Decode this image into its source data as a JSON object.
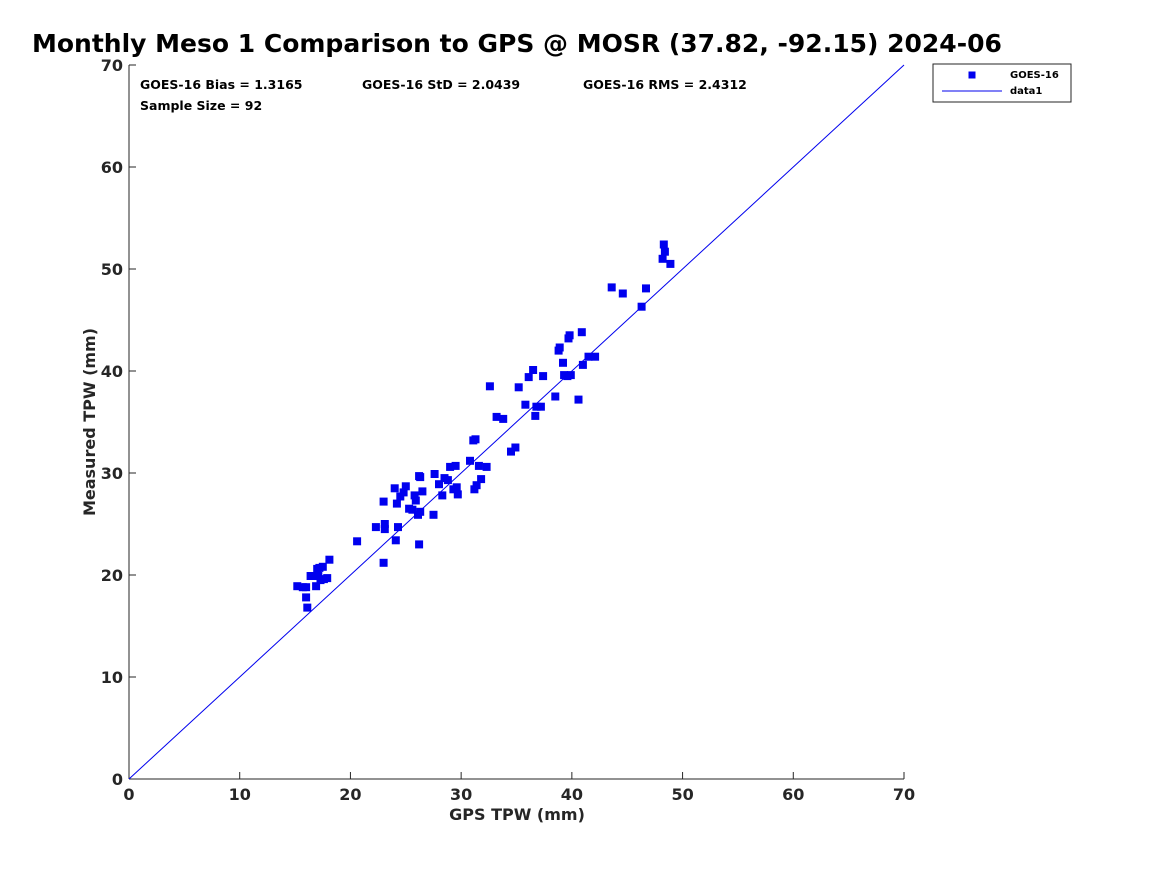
{
  "chart_data": {
    "type": "scatter",
    "title": "Monthly Meso 1 Comparison to GPS @ MOSR (37.82, -92.15) 2024-06",
    "xlabel": "GPS TPW (mm)",
    "ylabel": "Measured TPW (mm)",
    "xlim": [
      0,
      70
    ],
    "ylim": [
      0,
      70
    ],
    "xticks": [
      0,
      10,
      20,
      30,
      40,
      50,
      60,
      70
    ],
    "yticks": [
      0,
      10,
      20,
      30,
      40,
      50,
      60,
      70
    ],
    "grid": false,
    "legend_position": "top-right",
    "stats": {
      "bias": "GOES-16 Bias = 1.3165",
      "std": "GOES-16 StD = 2.0439",
      "rms": "GOES-16 RMS = 2.4312",
      "sample_size": "Sample Size = 92"
    },
    "series": [
      {
        "name": "GOES-16",
        "marker": "square",
        "color": "#0000ee",
        "x": [
          15.2,
          15.7,
          16.0,
          16.1,
          16.0,
          16.4,
          16.9,
          17.0,
          17.1,
          17.2,
          17.3,
          17.5,
          17.9,
          18.1,
          17.6,
          20.6,
          22.3,
          23.0,
          23.1,
          23.1,
          23.0,
          24.1,
          24.0,
          24.2,
          24.3,
          24.5,
          24.8,
          25.0,
          25.3,
          25.6,
          25.8,
          25.9,
          26.1,
          26.2,
          26.3,
          26.3,
          26.5,
          26.2,
          27.5,
          27.6,
          28.0,
          28.3,
          28.5,
          28.8,
          29.0,
          29.3,
          29.5,
          29.6,
          29.7,
          30.8,
          31.1,
          31.2,
          31.3,
          31.4,
          31.6,
          31.8,
          32.3,
          32.6,
          33.2,
          33.8,
          34.5,
          34.9,
          35.2,
          35.8,
          36.1,
          36.5,
          36.7,
          36.8,
          37.2,
          37.4,
          38.5,
          38.8,
          38.9,
          39.2,
          39.3,
          39.6,
          39.7,
          39.8,
          39.9,
          40.6,
          40.9,
          41.0,
          41.5,
          42.1,
          43.6,
          44.6,
          46.3,
          46.7,
          48.2,
          48.3,
          48.4,
          48.9
        ],
        "y": [
          18.9,
          18.8,
          17.8,
          16.8,
          18.8,
          19.9,
          18.9,
          20.6,
          19.9,
          20.7,
          19.5,
          20.8,
          19.7,
          21.5,
          19.6,
          23.3,
          24.7,
          21.2,
          25.0,
          24.5,
          27.2,
          23.4,
          28.5,
          27.0,
          24.7,
          27.7,
          28.1,
          28.7,
          26.5,
          26.4,
          27.8,
          27.3,
          25.9,
          23.0,
          29.6,
          26.2,
          28.2,
          29.7,
          25.9,
          29.9,
          28.9,
          27.8,
          29.5,
          29.3,
          30.6,
          28.4,
          30.7,
          28.6,
          27.9,
          31.2,
          33.2,
          28.4,
          33.3,
          28.8,
          30.7,
          29.4,
          30.6,
          38.5,
          35.5,
          35.3,
          32.1,
          32.5,
          38.4,
          36.7,
          39.4,
          40.1,
          35.6,
          36.5,
          36.5,
          39.5,
          37.5,
          42.0,
          42.3,
          40.8,
          39.6,
          39.5,
          43.2,
          43.5,
          39.6,
          37.2,
          43.8,
          40.6,
          41.4,
          41.4,
          48.2,
          47.6,
          46.3,
          48.1,
          51.0,
          52.4,
          51.7,
          50.5
        ]
      },
      {
        "name": "data1",
        "line": true,
        "color": "#0000ee",
        "x": [
          0,
          70
        ],
        "y": [
          0,
          70
        ]
      }
    ]
  }
}
